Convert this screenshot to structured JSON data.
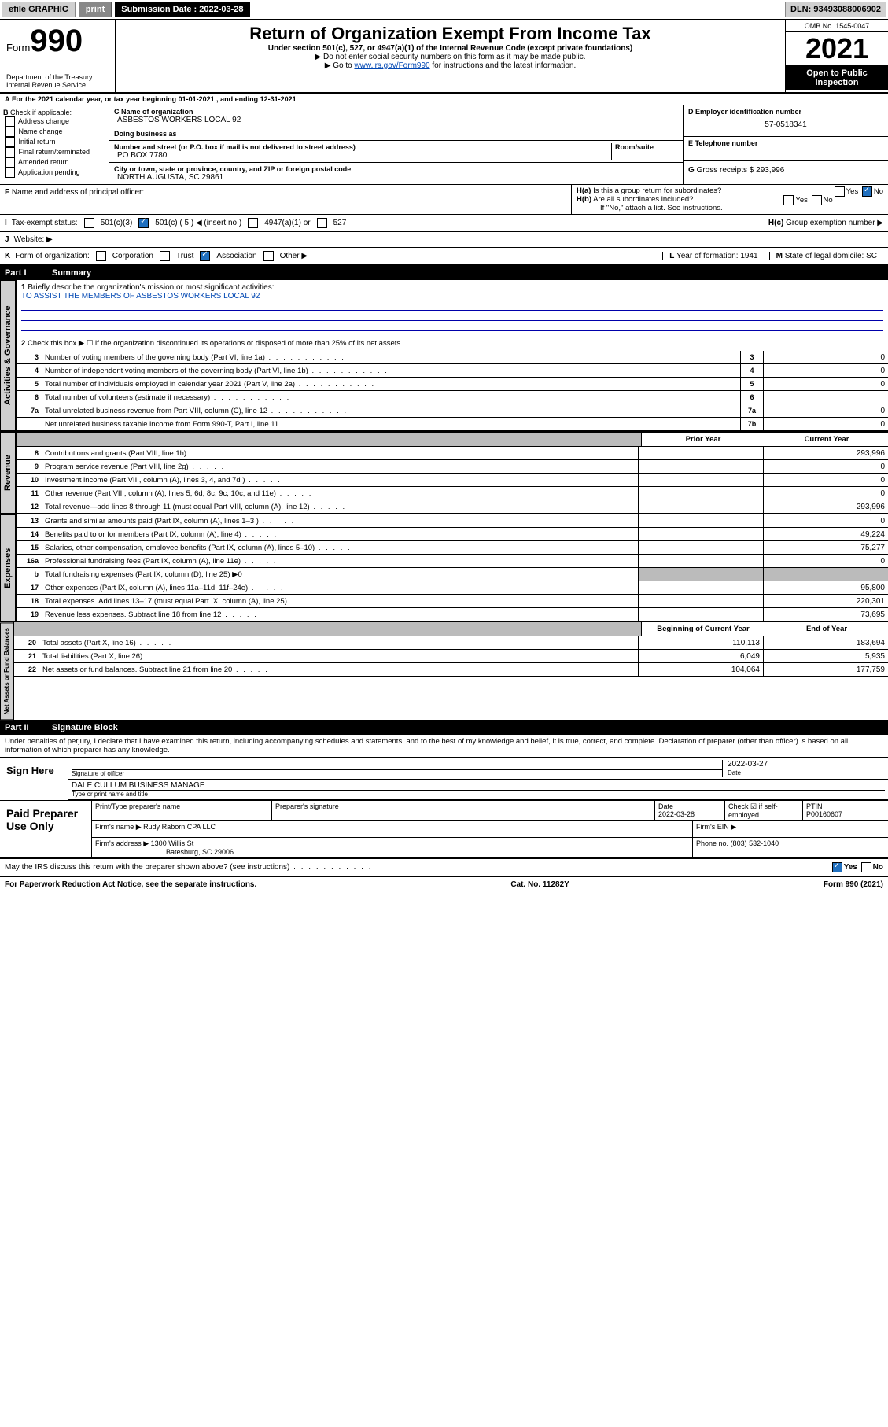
{
  "topbar": {
    "efile": "efile GRAPHIC",
    "print": "print",
    "submission_label": "Submission Date : 2022-03-28",
    "dln": "DLN: 93493088006902"
  },
  "header": {
    "form_prefix": "Form",
    "form_no": "990",
    "title": "Return of Organization Exempt From Income Tax",
    "subtitle": "Under section 501(c), 527, or 4947(a)(1) of the Internal Revenue Code (except private foundations)",
    "instr1": "▶ Do not enter social security numbers on this form as it may be made public.",
    "instr2_pre": "▶ Go to ",
    "instr2_link": "www.irs.gov/Form990",
    "instr2_post": " for instructions and the latest information.",
    "dept": "Department of the Treasury",
    "irs": "Internal Revenue Service",
    "omb": "OMB No. 1545-0047",
    "year": "2021",
    "open": "Open to Public",
    "insp": "Inspection"
  },
  "A": {
    "text": "For the 2021 calendar year, or tax year beginning 01-01-2021   , and ending 12-31-2021"
  },
  "B": {
    "label": "Check if applicable:",
    "items": [
      "Address change",
      "Name change",
      "Initial return",
      "Final return/terminated",
      "Amended return",
      "Application pending"
    ]
  },
  "C": {
    "name_label": "Name of organization",
    "name": "ASBESTOS WORKERS LOCAL 92",
    "dba_label": "Doing business as",
    "dba": "",
    "street_label": "Number and street (or P.O. box if mail is not delivered to street address)",
    "room_label": "Room/suite",
    "street": "PO BOX 7780",
    "city_label": "City or town, state or province, country, and ZIP or foreign postal code",
    "city": "NORTH AUGUSTA, SC  29861"
  },
  "D": {
    "label": "Employer identification number",
    "val": "57-0518341"
  },
  "E": {
    "label": "Telephone number",
    "val": ""
  },
  "G": {
    "label": "Gross receipts $",
    "val": "293,996"
  },
  "F": {
    "label": "Name and address of principal officer:"
  },
  "H": {
    "a": "Is this a group return for subordinates?",
    "b": "Are all subordinates included?",
    "b_note": "If \"No,\" attach a list. See instructions.",
    "c": "Group exemption number ▶",
    "yes": "Yes",
    "no": "No"
  },
  "I": {
    "label": "Tax-exempt status:",
    "opts": [
      "501(c)(3)",
      "501(c) ( 5 ) ◀ (insert no.)",
      "4947(a)(1) or",
      "527"
    ]
  },
  "J": {
    "label": "Website: ▶"
  },
  "K": {
    "label": "Form of organization:",
    "opts": [
      "Corporation",
      "Trust",
      "Association",
      "Other ▶"
    ]
  },
  "L": {
    "label": "Year of formation:",
    "val": "1941"
  },
  "M": {
    "label": "State of legal domicile:",
    "val": "SC"
  },
  "part1": {
    "num": "Part I",
    "title": "Summary"
  },
  "summary": {
    "l1": "Briefly describe the organization's mission or most significant activities:",
    "l1val": "TO ASSIST THE MEMBERS OF ASBESTOS WORKERS LOCAL 92",
    "l2": "Check this box ▶ ☐ if the organization discontinued its operations or disposed of more than 25% of its net assets.",
    "lines": [
      {
        "n": "3",
        "d": "Number of voting members of the governing body (Part VI, line 1a)",
        "bn": "3",
        "v": "0"
      },
      {
        "n": "4",
        "d": "Number of independent voting members of the governing body (Part VI, line 1b)",
        "bn": "4",
        "v": "0"
      },
      {
        "n": "5",
        "d": "Total number of individuals employed in calendar year 2021 (Part V, line 2a)",
        "bn": "5",
        "v": "0"
      },
      {
        "n": "6",
        "d": "Total number of volunteers (estimate if necessary)",
        "bn": "6",
        "v": ""
      },
      {
        "n": "7a",
        "d": "Total unrelated business revenue from Part VIII, column (C), line 12",
        "bn": "7a",
        "v": "0"
      },
      {
        "n": "",
        "d": "Net unrelated business taxable income from Form 990-T, Part I, line 11",
        "bn": "7b",
        "v": "0"
      }
    ],
    "hdr_prior": "Prior Year",
    "hdr_curr": "Current Year",
    "rev": [
      {
        "n": "8",
        "d": "Contributions and grants (Part VIII, line 1h)",
        "p": "",
        "c": "293,996"
      },
      {
        "n": "9",
        "d": "Program service revenue (Part VIII, line 2g)",
        "p": "",
        "c": "0"
      },
      {
        "n": "10",
        "d": "Investment income (Part VIII, column (A), lines 3, 4, and 7d )",
        "p": "",
        "c": "0"
      },
      {
        "n": "11",
        "d": "Other revenue (Part VIII, column (A), lines 5, 6d, 8c, 9c, 10c, and 11e)",
        "p": "",
        "c": "0"
      },
      {
        "n": "12",
        "d": "Total revenue—add lines 8 through 11 (must equal Part VIII, column (A), line 12)",
        "p": "",
        "c": "293,996"
      }
    ],
    "exp": [
      {
        "n": "13",
        "d": "Grants and similar amounts paid (Part IX, column (A), lines 1–3 )",
        "p": "",
        "c": "0"
      },
      {
        "n": "14",
        "d": "Benefits paid to or for members (Part IX, column (A), line 4)",
        "p": "",
        "c": "49,224"
      },
      {
        "n": "15",
        "d": "Salaries, other compensation, employee benefits (Part IX, column (A), lines 5–10)",
        "p": "",
        "c": "75,277"
      },
      {
        "n": "16a",
        "d": "Professional fundraising fees (Part IX, column (A), line 11e)",
        "p": "",
        "c": "0"
      },
      {
        "n": "b",
        "d": "Total fundraising expenses (Part IX, column (D), line 25) ▶0",
        "grey": true
      },
      {
        "n": "17",
        "d": "Other expenses (Part IX, column (A), lines 11a–11d, 11f–24e)",
        "p": "",
        "c": "95,800"
      },
      {
        "n": "18",
        "d": "Total expenses. Add lines 13–17 (must equal Part IX, column (A), line 25)",
        "p": "",
        "c": "220,301"
      },
      {
        "n": "19",
        "d": "Revenue less expenses. Subtract line 18 from line 12",
        "p": "",
        "c": "73,695"
      }
    ],
    "hdr_beg": "Beginning of Current Year",
    "hdr_end": "End of Year",
    "net": [
      {
        "n": "20",
        "d": "Total assets (Part X, line 16)",
        "p": "110,113",
        "c": "183,694"
      },
      {
        "n": "21",
        "d": "Total liabilities (Part X, line 26)",
        "p": "6,049",
        "c": "5,935"
      },
      {
        "n": "22",
        "d": "Net assets or fund balances. Subtract line 21 from line 20",
        "p": "104,064",
        "c": "177,759"
      }
    ]
  },
  "tabs": {
    "gov": "Activities & Governance",
    "rev": "Revenue",
    "exp": "Expenses",
    "net": "Net Assets or Fund Balances"
  },
  "part2": {
    "num": "Part II",
    "title": "Signature Block",
    "decl": "Under penalties of perjury, I declare that I have examined this return, including accompanying schedules and statements, and to the best of my knowledge and belief, it is true, correct, and complete. Declaration of preparer (other than officer) is based on all information of which preparer has any knowledge."
  },
  "sign": {
    "here": "Sign Here",
    "sig_label": "Signature of officer",
    "date_label": "Date",
    "date": "2022-03-27",
    "name": "DALE CULLUM BUSINESS MANAGE",
    "name_label": "Type or print name and title"
  },
  "paid": {
    "title": "Paid Preparer Use Only",
    "h1": "Print/Type preparer's name",
    "h2": "Preparer's signature",
    "h3": "Date",
    "h3v": "2022-03-28",
    "h4": "Check ☑ if self-employed",
    "h5": "PTIN",
    "h5v": "P00160607",
    "firm_label": "Firm's name   ▶",
    "firm": "Rudy Raborn CPA LLC",
    "ein_label": "Firm's EIN ▶",
    "addr_label": "Firm's address ▶",
    "addr1": "1300 Willis St",
    "addr2": "Batesburg, SC  29006",
    "phone_label": "Phone no.",
    "phone": "(803) 532-1040"
  },
  "discuss": "May the IRS discuss this return with the preparer shown above? (see instructions)",
  "footer": {
    "l": "For Paperwork Reduction Act Notice, see the separate instructions.",
    "m": "Cat. No. 11282Y",
    "r": "Form 990 (2021)"
  }
}
